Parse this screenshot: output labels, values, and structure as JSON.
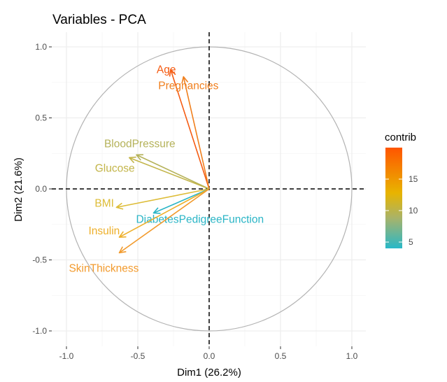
{
  "chart_data": {
    "type": "pca-variable-correlation-circle",
    "title": "Variables - PCA",
    "xlabel": "Dim1 (26.2%)",
    "ylabel": "Dim2 (21.6%)",
    "xlim": [
      -1.0,
      1.0
    ],
    "ylim": [
      -1.0,
      1.0
    ],
    "x_ticks": [
      -1.0,
      -0.5,
      0.0,
      0.5,
      1.0
    ],
    "x_tick_labels": [
      "-1.0",
      "-0.5",
      "0.0",
      "0.5",
      "1.0"
    ],
    "y_ticks": [
      -1.0,
      -0.5,
      0.0,
      0.5,
      1.0
    ],
    "y_tick_labels": [
      "-1.0",
      "-0.5",
      "0.0",
      "0.5",
      "1.0"
    ],
    "grid": true,
    "unit_circle": true,
    "legend": {
      "title": "contrib",
      "placement": "right",
      "range": [
        4,
        20
      ],
      "ticks": [
        5,
        10,
        15
      ],
      "colors": [
        "#28B8C8",
        "#E8B400",
        "#FF5500"
      ]
    },
    "variables": [
      {
        "name": "Age",
        "x": -0.27,
        "y": 0.84,
        "contrib": 19.8,
        "color": "#F55B12"
      },
      {
        "name": "Pregnancies",
        "x": -0.18,
        "y": 0.79,
        "contrib": 17.2,
        "color": "#F07F1D"
      },
      {
        "name": "BloodPressure",
        "x": -0.51,
        "y": 0.24,
        "contrib": 10.6,
        "color": "#B5B25A"
      },
      {
        "name": "Glucose",
        "x": -0.56,
        "y": 0.22,
        "contrib": 11.4,
        "color": "#C3B54A"
      },
      {
        "name": "BMI",
        "x": -0.65,
        "y": -0.13,
        "contrib": 12.8,
        "color": "#DDBC37"
      },
      {
        "name": "DiabetesPedigreeFunction",
        "x": -0.39,
        "y": -0.17,
        "contrib": 4.3,
        "color": "#2AB5C6"
      },
      {
        "name": "Insulin",
        "x": -0.63,
        "y": -0.34,
        "contrib": 14.7,
        "color": "#EDAF2A"
      },
      {
        "name": "SkinThickness",
        "x": -0.63,
        "y": -0.45,
        "contrib": 16.1,
        "color": "#F29A2C"
      }
    ]
  }
}
